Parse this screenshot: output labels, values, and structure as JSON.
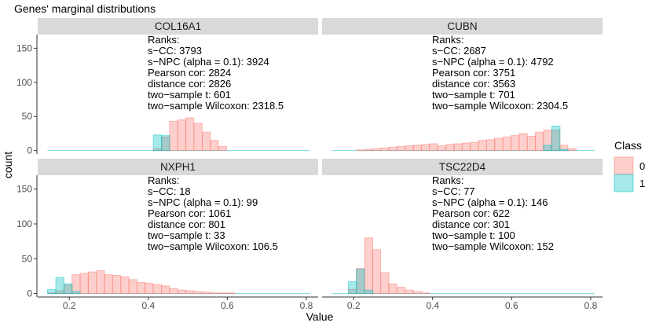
{
  "chart_data": {
    "type": "histogram-facets",
    "title": "Genes' marginal distributions",
    "xlabel": "Value",
    "ylabel": "count",
    "xlim": [
      0.12,
      0.83
    ],
    "ylim": [
      -5,
      170
    ],
    "x_ticks": [
      0.2,
      0.4,
      0.6,
      0.8
    ],
    "x_tick_labels": [
      "0.2",
      "0.4",
      "0.6",
      "0.8"
    ],
    "y_ticks": [
      0,
      50,
      100,
      150
    ],
    "y_tick_labels": [
      "0",
      "50",
      "100",
      "150"
    ],
    "bin_width": 0.0206,
    "legend": {
      "title": "Class",
      "position": "right",
      "entries": [
        {
          "label": "0",
          "color": "#F8766D"
        },
        {
          "label": "1",
          "color": "#00BFC4"
        }
      ]
    },
    "colors": {
      "class0": "#F8766D",
      "class1": "#00BFC4",
      "strip": "#d9d9d9",
      "axis": "#333333"
    },
    "panels": [
      {
        "name": "COL16A1",
        "stats": {
          "heading": "Ranks:",
          "lines": [
            "s−CC: 3793",
            "s−NPC (alpha = 0.1): 3924",
            "Pearson cor: 2824",
            "distance cor: 2826",
            "two−sample t: 601",
            "two−sample Wilcoxon: 2318.5"
          ]
        },
        "series": [
          {
            "name": "0",
            "x": [
              0.423,
              0.444,
              0.464,
              0.485,
              0.505,
              0.526,
              0.547,
              0.567,
              0.588
            ],
            "values": [
              3,
              20,
              43,
              45,
              48,
              40,
              27,
              15,
              6
            ]
          },
          {
            "name": "1",
            "x": [
              0.423,
              0.444
            ],
            "values": [
              23,
              22
            ]
          }
        ]
      },
      {
        "name": "CUBN",
        "stats": {
          "heading": "Ranks:",
          "lines": [
            "s−CC: 2687",
            "s−NPC (alpha = 0.1): 4792",
            "Pearson cor: 3751",
            "distance cor: 3563",
            "two−sample t: 701",
            "two−sample Wilcoxon: 2304.5"
          ]
        },
        "series": [
          {
            "name": "0",
            "x": [
              0.217,
              0.238,
              0.258,
              0.279,
              0.299,
              0.32,
              0.341,
              0.361,
              0.382,
              0.402,
              0.423,
              0.444,
              0.464,
              0.485,
              0.505,
              0.526,
              0.547,
              0.567,
              0.588,
              0.609,
              0.629,
              0.65,
              0.67,
              0.691,
              0.712,
              0.732,
              0.753
            ],
            "values": [
              1,
              2,
              3,
              4,
              5,
              6,
              7,
              8,
              9,
              10,
              7,
              9,
              10,
              11,
              12,
              15,
              16,
              18,
              20,
              22,
              25,
              21,
              27,
              30,
              30,
              8,
              3
            ]
          },
          {
            "name": "1",
            "x": [
              0.691,
              0.712,
              0.732
            ],
            "values": [
              8,
              36,
              2
            ]
          }
        ]
      },
      {
        "name": "NXPH1",
        "stats": {
          "heading": "Ranks:",
          "lines": [
            "s−CC: 18",
            "s−NPC (alpha = 0.1): 99",
            "Pearson cor: 1061",
            "distance cor: 801",
            "two−sample t: 33",
            "two−sample Wilcoxon: 106.5"
          ]
        },
        "series": [
          {
            "name": "0",
            "x": [
              0.155,
              0.176,
              0.197,
              0.217,
              0.238,
              0.258,
              0.279,
              0.299,
              0.32,
              0.341,
              0.361,
              0.382,
              0.402,
              0.423,
              0.444,
              0.464,
              0.485,
              0.505,
              0.526,
              0.547,
              0.567,
              0.588,
              0.609
            ],
            "values": [
              1,
              4,
              12,
              27,
              29,
              31,
              33,
              27,
              26,
              24,
              20,
              16,
              15,
              13,
              11,
              7,
              5,
              4,
              3,
              2,
              1,
              1,
              1
            ]
          },
          {
            "name": "1",
            "x": [
              0.155,
              0.176,
              0.197,
              0.217
            ],
            "values": [
              6,
              23,
              14,
              3
            ]
          }
        ]
      },
      {
        "name": "TSC22D4",
        "stats": {
          "heading": "Ranks:",
          "lines": [
            "s−CC: 77",
            "s−NPC (alpha = 0.1): 146",
            "Pearson cor: 622",
            "distance cor: 301",
            "two−sample t: 100",
            "two−sample Wilcoxon: 152"
          ]
        },
        "series": [
          {
            "name": "0",
            "x": [
              0.197,
              0.217,
              0.238,
              0.258,
              0.279,
              0.299,
              0.32,
              0.341,
              0.361,
              0.382
            ],
            "values": [
              6,
              36,
              80,
              63,
              30,
              14,
              9,
              5,
              3,
              1
            ]
          },
          {
            "name": "1",
            "x": [
              0.197,
              0.217,
              0.238
            ],
            "values": [
              17,
              35,
              5
            ]
          }
        ]
      }
    ]
  }
}
